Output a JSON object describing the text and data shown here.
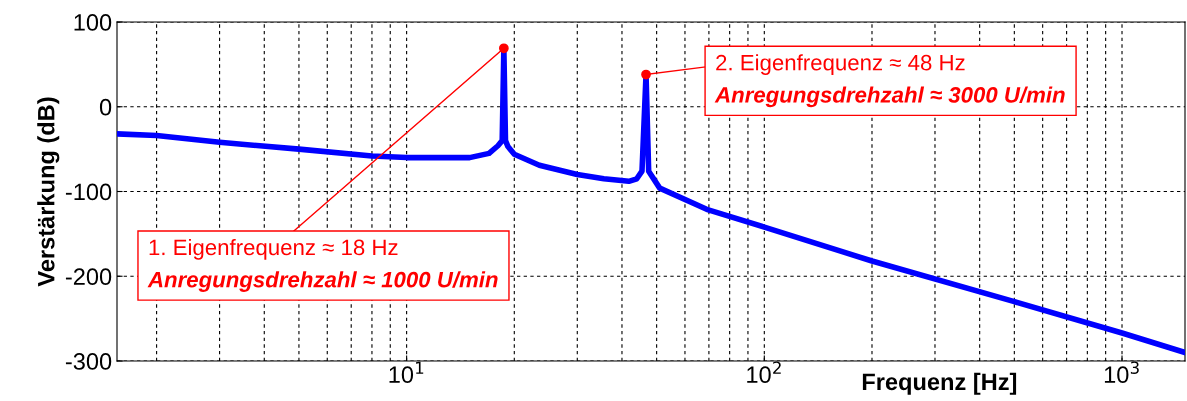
{
  "chart_data": {
    "type": "line",
    "xlabel": "Frequenz [Hz]",
    "ylabel": "Verstärkung (dB)",
    "x": [
      1.55,
      2,
      3,
      5,
      8,
      10,
      15,
      17,
      18,
      18.5,
      18.7,
      18.9,
      19.2,
      20,
      23.5,
      30,
      35.6,
      41.8,
      44,
      45.5,
      46.7,
      47.5,
      51,
      69,
      100,
      200,
      500,
      1000,
      1500
    ],
    "series": [
      {
        "color": "#0000ff",
        "values": [
          -32,
          -34,
          -42,
          -50,
          -58,
          -60,
          -60,
          -55,
          -46,
          -40,
          69,
          -40,
          -47,
          -56,
          -69,
          -80,
          -85,
          -88,
          -85,
          -76,
          38,
          -76,
          -96,
          -121,
          -142,
          -182,
          -230,
          -267,
          -290
        ]
      }
    ],
    "log": "x",
    "xlim": [
      1.55,
      1500
    ],
    "ylim": [
      -300,
      100
    ],
    "xticks": [
      {
        "value": 10,
        "label": "10$^{1}$"
      },
      {
        "value": 100,
        "label": "10$^{2}$"
      },
      {
        "value": 1000,
        "label": "10$^{3}$"
      }
    ],
    "yticks": [
      -300,
      -200,
      -100,
      0,
      100
    ],
    "grid": true,
    "marker": "none",
    "line_style": "solid",
    "annotations": [
      {
        "text": "1. Eigenfrequenz ≈ 18 Hz\nAnregungsdrehzahl ≈ 1000 U/min",
        "x": 18.7,
        "y": 69
      },
      {
        "text": "2. Eigenfrequenz ≈ 48 Hz\nAnregungsdrehzahl ≈ 3000 U/min",
        "x": 46.7,
        "y": 38
      }
    ]
  }
}
